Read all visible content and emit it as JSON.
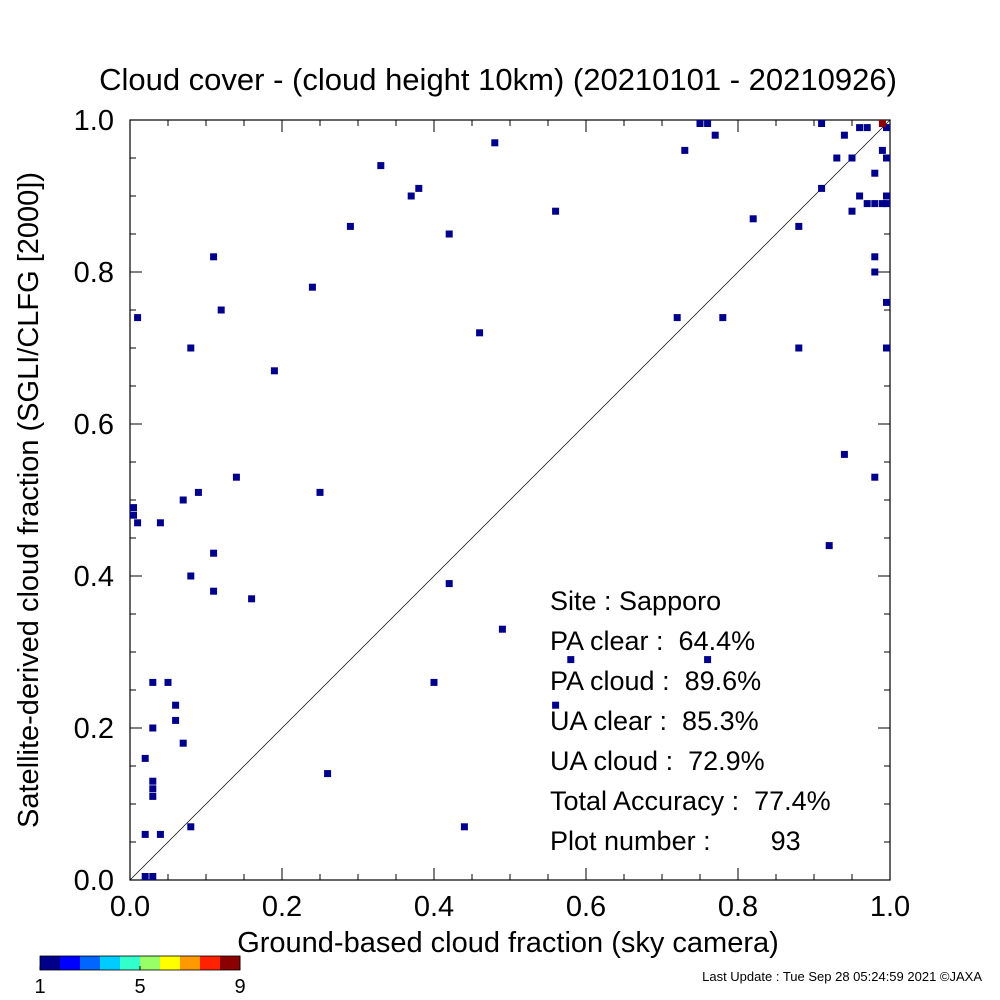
{
  "chart_data": {
    "type": "scatter",
    "title": "Cloud cover - (cloud height 10km)  (20210101 - 20210926)",
    "xlabel": "Ground-based cloud fraction (sky camera)",
    "ylabel": "Satellite-derived cloud fraction (SGLI/CLFG [2000])",
    "xlim": [
      0.0,
      1.0
    ],
    "ylim": [
      0.0,
      1.0
    ],
    "x_ticks": [
      "0.0",
      "0.2",
      "0.4",
      "0.6",
      "0.8",
      "1.0"
    ],
    "y_ticks": [
      "0.0",
      "0.2",
      "0.4",
      "0.6",
      "0.8",
      "1.0"
    ],
    "diagonal_line": true,
    "grid": false,
    "point_color": "#00008b",
    "max_color": "#8b0000",
    "points": [
      [
        0.0,
        0.49
      ],
      [
        0.0,
        0.48
      ],
      [
        0.01,
        0.47
      ],
      [
        0.01,
        0.74
      ],
      [
        0.02,
        0.16
      ],
      [
        0.02,
        0.06
      ],
      [
        0.02,
        0.0
      ],
      [
        0.03,
        0.0
      ],
      [
        0.03,
        0.26
      ],
      [
        0.03,
        0.2
      ],
      [
        0.03,
        0.13
      ],
      [
        0.03,
        0.12
      ],
      [
        0.03,
        0.11
      ],
      [
        0.04,
        0.47
      ],
      [
        0.04,
        0.06
      ],
      [
        0.05,
        0.26
      ],
      [
        0.06,
        0.23
      ],
      [
        0.06,
        0.21
      ],
      [
        0.07,
        0.18
      ],
      [
        0.07,
        0.5
      ],
      [
        0.08,
        0.7
      ],
      [
        0.08,
        0.4
      ],
      [
        0.08,
        0.07
      ],
      [
        0.09,
        0.51
      ],
      [
        0.11,
        0.82
      ],
      [
        0.11,
        0.43
      ],
      [
        0.11,
        0.38
      ],
      [
        0.12,
        0.75
      ],
      [
        0.14,
        0.53
      ],
      [
        0.16,
        0.37
      ],
      [
        0.19,
        0.67
      ],
      [
        0.24,
        0.78
      ],
      [
        0.25,
        0.51
      ],
      [
        0.26,
        0.14
      ],
      [
        0.29,
        0.86
      ],
      [
        0.33,
        0.94
      ],
      [
        0.37,
        0.9
      ],
      [
        0.38,
        0.91
      ],
      [
        0.4,
        0.26
      ],
      [
        0.42,
        0.85
      ],
      [
        0.42,
        0.39
      ],
      [
        0.44,
        0.07
      ],
      [
        0.46,
        0.72
      ],
      [
        0.48,
        0.97
      ],
      [
        0.49,
        0.33
      ],
      [
        0.56,
        0.88
      ],
      [
        0.56,
        0.23
      ],
      [
        0.58,
        0.29
      ],
      [
        0.72,
        0.74
      ],
      [
        0.73,
        0.96
      ],
      [
        0.75,
        1.0
      ],
      [
        0.76,
        1.0
      ],
      [
        0.76,
        0.29
      ],
      [
        0.77,
        0.98
      ],
      [
        0.78,
        0.74
      ],
      [
        0.82,
        0.87
      ],
      [
        0.88,
        0.86
      ],
      [
        0.88,
        0.7
      ],
      [
        0.91,
        1.0
      ],
      [
        0.91,
        0.91
      ],
      [
        0.92,
        0.44
      ],
      [
        0.93,
        0.95
      ],
      [
        0.94,
        0.98
      ],
      [
        0.94,
        0.56
      ],
      [
        0.95,
        0.95
      ],
      [
        0.95,
        0.88
      ],
      [
        0.96,
        0.9
      ],
      [
        0.96,
        0.99
      ],
      [
        0.97,
        0.99
      ],
      [
        0.97,
        0.89
      ],
      [
        0.98,
        0.89
      ],
      [
        0.98,
        0.93
      ],
      [
        0.98,
        0.82
      ],
      [
        0.98,
        0.8
      ],
      [
        0.98,
        0.53
      ],
      [
        0.99,
        0.96
      ],
      [
        0.99,
        0.89
      ],
      [
        1.0,
        0.99
      ],
      [
        1.0,
        0.95
      ],
      [
        1.0,
        0.9
      ],
      [
        1.0,
        0.89
      ],
      [
        1.0,
        0.76
      ],
      [
        1.0,
        0.7
      ]
    ],
    "max_points": [
      [
        0.99,
        1.0
      ]
    ],
    "colorbar": {
      "colors": [
        "#00008b",
        "#0000ff",
        "#0066ff",
        "#00ccff",
        "#33ffcc",
        "#99ff66",
        "#ffff00",
        "#ff9900",
        "#ff2200",
        "#8b0000"
      ],
      "tick_labels": [
        "1",
        "5",
        "9"
      ],
      "min": 1,
      "max": 9
    },
    "stats": [
      {
        "label": "Site : ",
        "value": "Sapporo"
      },
      {
        "label": "PA clear :",
        "value": "64.4%"
      },
      {
        "label": "PA cloud :",
        "value": "89.6%"
      },
      {
        "label": "UA clear :",
        "value": "85.3%"
      },
      {
        "label": "UA cloud :",
        "value": "72.9%"
      },
      {
        "label": "Total Accuracy :",
        "value": "77.4%"
      },
      {
        "label": "Plot number :",
        "value": "93"
      }
    ]
  },
  "footer": "Last Update : Tue Sep 28 05:24:59 2021  ©JAXA"
}
